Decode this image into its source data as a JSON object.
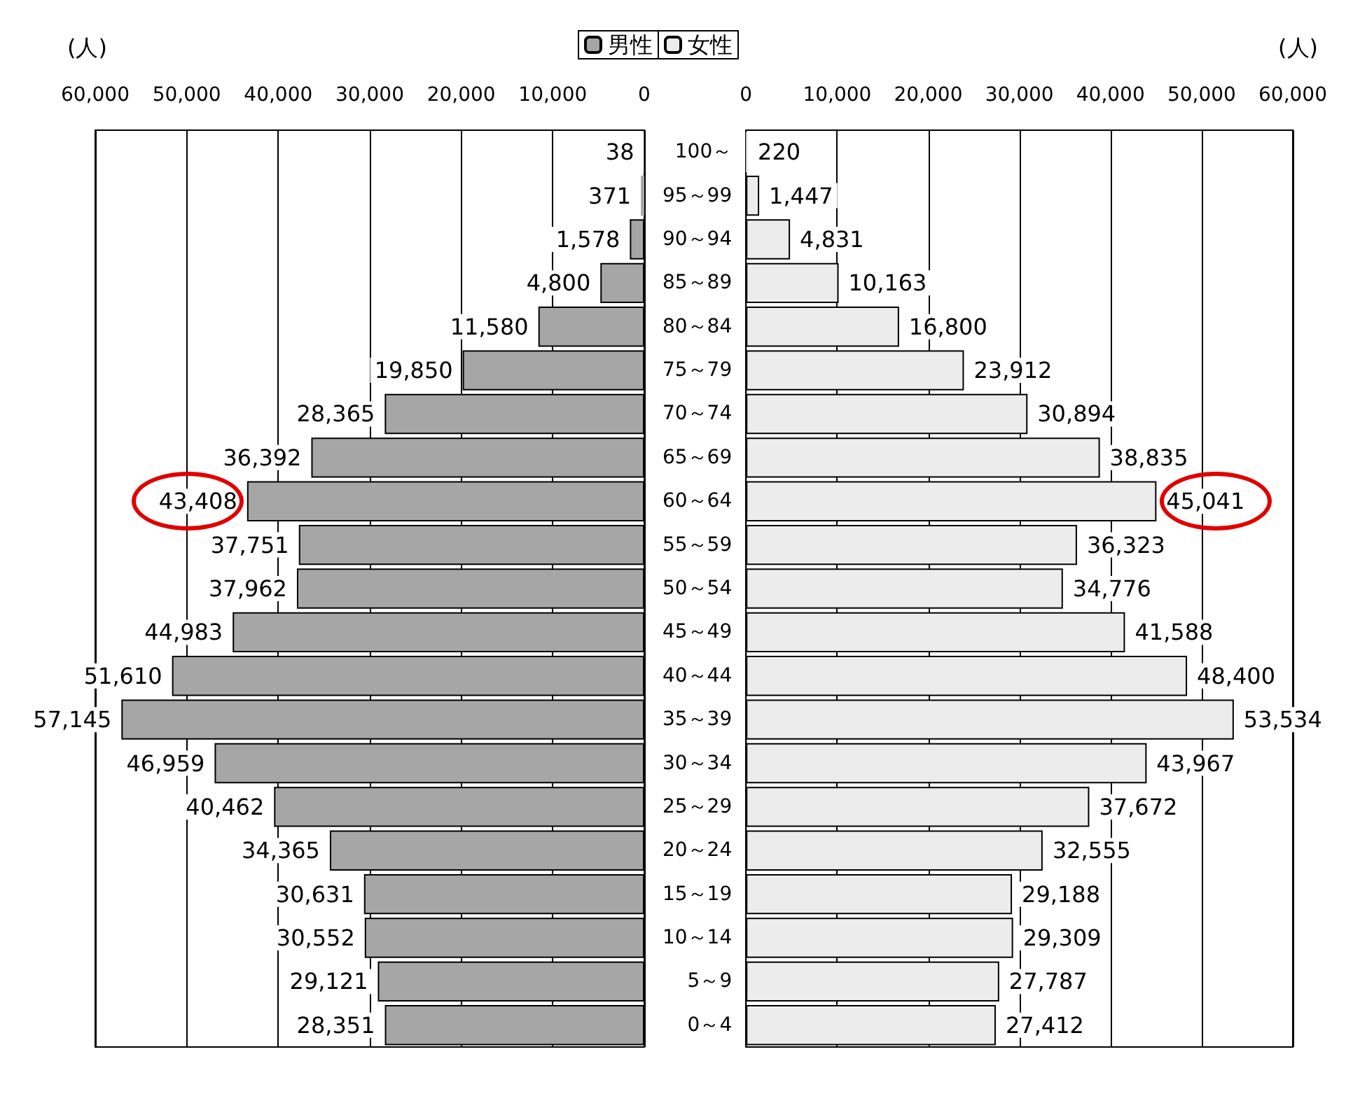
{
  "chart_data": [
    {
      "type": "bar",
      "orientation": "horizontal",
      "xlabel": "(人)",
      "categories": [
        null,
        null,
        null,
        null,
        null,
        null,
        null,
        null,
        null,
        null,
        null,
        null,
        null,
        null,
        null,
        null,
        null,
        null,
        null,
        null,
        null
      ],
      "series": [
        {
          "name": "男性",
          "color": "#a6a6a6",
          "values": [
            38,
            371,
            1578,
            4800,
            11580,
            19850,
            28365,
            36392,
            43408,
            37751,
            37962,
            44983,
            51610,
            57145,
            46959,
            40462,
            34365,
            30631,
            30552,
            29121,
            28351
          ],
          "value_labels": [
            "38",
            "371",
            "1,578",
            "4,800",
            "11,580",
            "19,850",
            "28,365",
            "36,392",
            "43,408",
            "37,751",
            "37,962",
            "44,983",
            "51,610",
            "57,145",
            "46,959",
            "40,462",
            "34,365",
            "30,631",
            "30,552",
            "29,121",
            "28,351"
          ]
        }
      ],
      "xlim": [
        60000,
        0
      ],
      "xticks": [
        {
          "value": 60000,
          "label": "60,000"
        },
        {
          "value": 50000,
          "label": "50,000"
        },
        {
          "value": 40000,
          "label": "40,000"
        },
        {
          "value": 30000,
          "label": "30,000"
        },
        {
          "value": 20000,
          "label": "20,000"
        },
        {
          "value": 10000,
          "label": "10,000"
        },
        0
      ],
      "grid": "x",
      "legend": "top right",
      "tick_labels": "x"
    },
    {
      "type": "bar",
      "orientation": "horizontal",
      "xlabel": "(人)",
      "categories": [
        "100～",
        "95～99",
        "90～94",
        "85～89",
        "80～84",
        "75～79",
        "70～74",
        "65～69",
        "60～64",
        "55～59",
        "50～54",
        "45～49",
        "40～44",
        "35～39",
        "30～34",
        "25～29",
        "20～24",
        "15～19",
        "10～14",
        "5～9",
        "0～4"
      ],
      "series": [
        {
          "name": "女性",
          "color": "#ececec",
          "values": [
            220,
            1447,
            4831,
            10163,
            16800,
            23912,
            30894,
            38835,
            45041,
            36323,
            34776,
            41588,
            48400,
            53534,
            43967,
            37672,
            32555,
            29188,
            29309,
            27787,
            27412
          ],
          "value_labels": [
            "220",
            "1,447",
            "4,831",
            "10,163",
            "16,800",
            "23,912",
            "30,894",
            "38,835",
            "45,041",
            "36,323",
            "34,776",
            "41,588",
            "48,400",
            "53,534",
            "43,967",
            "37,672",
            "32,555",
            "29,188",
            "29,309",
            "27,787",
            "27,412"
          ]
        }
      ],
      "xlim": [
        0,
        60000
      ],
      "xticks": [
        0,
        {
          "value": 10000,
          "label": "10,000"
        },
        {
          "value": 20000,
          "label": "20,000"
        },
        {
          "value": 30000,
          "label": "30,000"
        },
        {
          "value": 40000,
          "label": "40,000"
        },
        {
          "value": 50000,
          "label": "50,000"
        },
        {
          "value": 60000,
          "label": "60,000"
        }
      ],
      "grid": "x",
      "legend": "top left"
    }
  ]
}
